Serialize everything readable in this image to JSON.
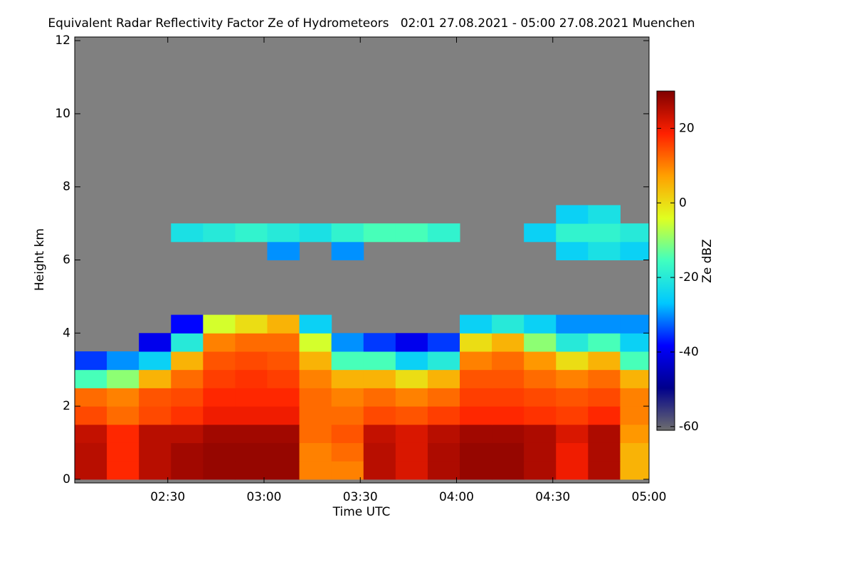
{
  "chart_data": {
    "type": "heatmap",
    "title": "Equivalent Radar Reflectivity Factor Ze of Hydrometeors   02:01 27.08.2021 - 05:00 27.08.2021 Muenchen",
    "x_label": "Time UTC",
    "y_label": "Height km",
    "colorbar_label": "Ze dBZ",
    "xlim": [
      121,
      300
    ],
    "xticks": [
      {
        "value": 150,
        "label": "02:30"
      },
      {
        "value": 180,
        "label": "03:00"
      },
      {
        "value": 210,
        "label": "03:30"
      },
      {
        "value": 240,
        "label": "04:00"
      },
      {
        "value": 270,
        "label": "04:30"
      },
      {
        "value": 300,
        "label": "05:00"
      }
    ],
    "ylim": [
      -0.1,
      12.1
    ],
    "yticks": [
      0,
      2,
      4,
      6,
      8,
      10,
      12
    ],
    "zlim": [
      -61,
      30
    ],
    "zticks": [
      -60,
      -40,
      -20,
      0,
      20
    ],
    "colorscale": [
      "#6e6e6e",
      "#00008c",
      "#0000ff",
      "#00c8ff",
      "#40ffc0",
      "#e0ff20",
      "#ffa000",
      "#ff2000",
      "#800000"
    ],
    "background": "#808080",
    "x": [
      126,
      136,
      146,
      156,
      166,
      176,
      186,
      196,
      206,
      216,
      226,
      236,
      246,
      256,
      266,
      276,
      286,
      296
    ],
    "y": [
      0.25,
      0.75,
      1.25,
      1.75,
      2.25,
      2.75,
      3.25,
      3.75,
      4.25,
      4.75,
      5.25,
      5.75,
      6.25,
      6.75,
      7.25
    ],
    "z": [
      [
        25,
        18,
        25,
        27,
        28,
        28,
        28,
        10,
        10,
        25,
        22,
        26,
        28,
        28,
        26,
        20,
        26,
        5
      ],
      [
        25,
        18,
        25,
        27,
        28,
        28,
        28,
        10,
        12,
        25,
        22,
        26,
        28,
        28,
        26,
        20,
        26,
        5
      ],
      [
        24,
        18,
        25,
        25,
        27,
        27,
        27,
        12,
        14,
        24,
        22,
        25,
        27,
        27,
        26,
        22,
        26,
        8
      ],
      [
        15,
        12,
        15,
        17,
        20,
        20,
        20,
        12,
        12,
        15,
        14,
        16,
        18,
        18,
        17,
        16,
        18,
        10
      ],
      [
        12,
        10,
        14,
        15,
        18,
        18,
        18,
        12,
        10,
        12,
        10,
        12,
        16,
        16,
        15,
        14,
        15,
        10
      ],
      [
        -15,
        -10,
        5,
        12,
        16,
        17,
        16,
        10,
        5,
        5,
        0,
        5,
        14,
        14,
        12,
        10,
        12,
        5
      ],
      [
        -35,
        -30,
        -25,
        5,
        14,
        15,
        14,
        5,
        -15,
        -15,
        -25,
        -20,
        10,
        12,
        8,
        0,
        5,
        -15
      ],
      [
        null,
        null,
        -40,
        -20,
        10,
        12,
        12,
        -5,
        -30,
        -35,
        -40,
        -35,
        0,
        5,
        -10,
        -20,
        -15,
        -25
      ],
      [
        null,
        null,
        null,
        -38,
        -5,
        0,
        5,
        -25,
        null,
        null,
        null,
        null,
        -25,
        -20,
        -25,
        -30,
        -30,
        -30
      ],
      [
        null,
        null,
        null,
        null,
        null,
        null,
        null,
        null,
        null,
        null,
        null,
        null,
        null,
        null,
        null,
        null,
        null,
        null
      ],
      [
        null,
        null,
        null,
        null,
        null,
        null,
        null,
        null,
        null,
        null,
        null,
        null,
        null,
        null,
        null,
        null,
        null,
        null
      ],
      [
        null,
        null,
        null,
        null,
        null,
        null,
        null,
        null,
        null,
        null,
        null,
        null,
        null,
        null,
        null,
        null,
        null,
        null
      ],
      [
        null,
        null,
        null,
        null,
        null,
        null,
        -30,
        null,
        -30,
        null,
        null,
        null,
        null,
        null,
        null,
        -25,
        -22,
        -25
      ],
      [
        null,
        null,
        null,
        -22,
        -20,
        -18,
        -20,
        -22,
        -18,
        -15,
        -15,
        -18,
        null,
        null,
        -25,
        -18,
        -18,
        -20
      ],
      [
        null,
        null,
        null,
        null,
        null,
        null,
        null,
        null,
        null,
        null,
        null,
        null,
        null,
        null,
        null,
        -25,
        -22,
        null
      ]
    ]
  }
}
